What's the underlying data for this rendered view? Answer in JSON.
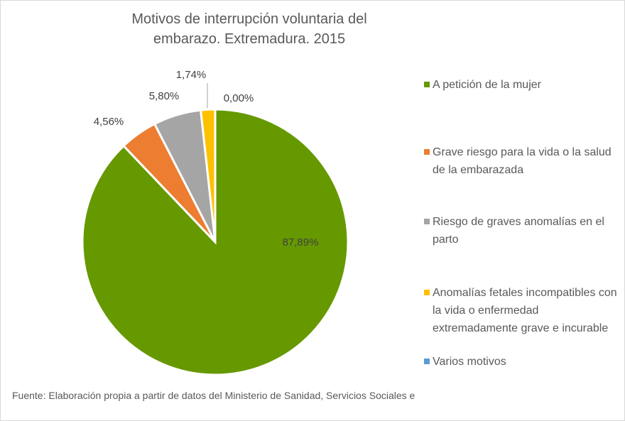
{
  "chart_data": {
    "type": "pie",
    "title": "Motivos de interrupción voluntaria del embarazo. Extremadura. 2015",
    "categories": [
      "A petición de la mujer",
      "Grave riesgo para la vida o la salud de la embarazada",
      "Riesgo de graves anomalías en el parto",
      "Anomalías fetales incompatibles con la vida o enfermedad extremadamente grave e incurable",
      "Varios motivos"
    ],
    "values": [
      87.89,
      4.56,
      5.8,
      1.74,
      0.0
    ],
    "value_labels": [
      "87,89%",
      "4,56%",
      "5,80%",
      "1,74%",
      "0,00%"
    ],
    "colors": [
      "#669900",
      "#ed7d31",
      "#a5a5a5",
      "#ffc000",
      "#5b9bd5"
    ],
    "legend": "right",
    "source": "Fuente: Elaboración propia a partir de datos del Ministerio de Sanidad, Servicios Sociales e"
  }
}
